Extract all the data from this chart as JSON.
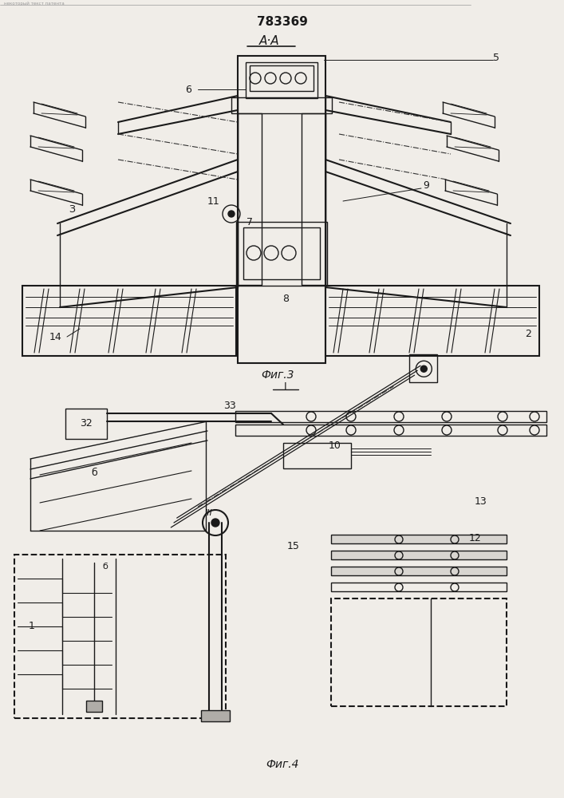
{
  "title": "783369",
  "section_label_top": "А·А",
  "fig3_label": "Фиг.3",
  "fig3_sublabel": "I",
  "fig4_label": "Фиг.4",
  "bg_color": "#f0ede8",
  "line_color": "#1a1a1a",
  "dashed_color": "#333333"
}
